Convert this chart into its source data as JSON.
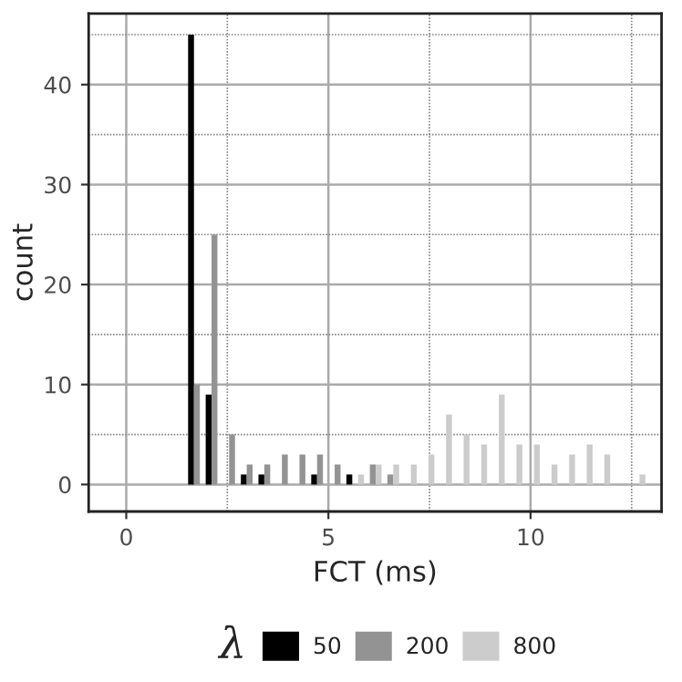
{
  "chart_data": {
    "type": "histogram",
    "xlabel": "FCT (ms)",
    "ylabel": "count",
    "legend_title": "λ",
    "bins": [
      1.53,
      1.965,
      2.4,
      2.835,
      3.27,
      3.705,
      4.14,
      4.575,
      5.01,
      5.445,
      5.88,
      6.315,
      6.75,
      7.185,
      7.62,
      8.055,
      8.49,
      8.925,
      9.36,
      9.795,
      10.23,
      10.665,
      11.1,
      11.535,
      11.97,
      12.405,
      12.84
    ],
    "series": [
      {
        "name": "50",
        "color": "#000000",
        "values": [
          45,
          9,
          0,
          1,
          1,
          0,
          0,
          1,
          0,
          1,
          0,
          0,
          0,
          0,
          0,
          0,
          0,
          0,
          0,
          0,
          0,
          0,
          0,
          0,
          0,
          0
        ]
      },
      {
        "name": "200",
        "color": "#939393",
        "values": [
          10,
          25,
          5,
          2,
          2,
          3,
          3,
          3,
          2,
          0,
          2,
          1,
          0,
          0,
          0,
          0,
          0,
          0,
          0,
          0,
          0,
          0,
          0,
          0,
          0,
          0
        ]
      },
      {
        "name": "800",
        "color": "#cccccc",
        "values": [
          0,
          0,
          0,
          0,
          0,
          0,
          0,
          0,
          0,
          1,
          2,
          2,
          2,
          3,
          7,
          5,
          4,
          9,
          4,
          4,
          2,
          3,
          4,
          3,
          0,
          1
        ]
      }
    ],
    "xlim": [
      -0.93,
      13.24
    ],
    "ylim": [
      -2.7,
      47.1
    ],
    "xticks": [
      0,
      5,
      10
    ],
    "yticks": [
      0,
      10,
      20,
      30,
      40
    ],
    "grid": true,
    "legend": "bottom"
  }
}
